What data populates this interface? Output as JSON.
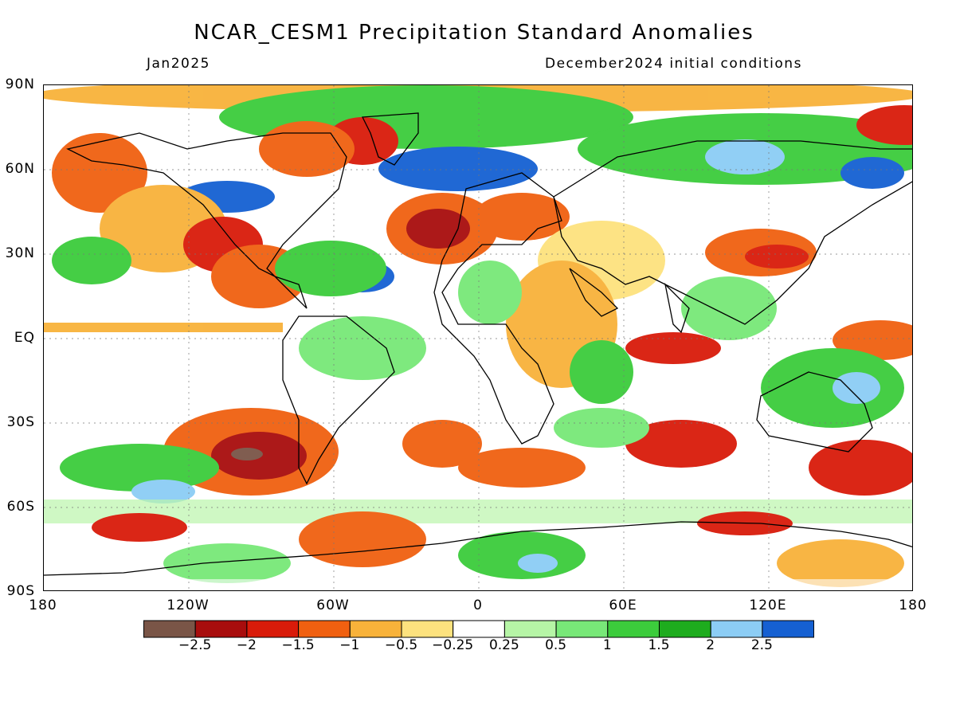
{
  "title": "NCAR_CESM1 Precipitation Standard Anomalies",
  "valid_month": "Jan2025",
  "initial_conditions": "December2024 initial conditions",
  "lat_labels": [
    "90N",
    "60N",
    "30N",
    "EQ",
    "30S",
    "60S",
    "90S"
  ],
  "lon_labels": [
    "180",
    "120W",
    "60W",
    "0",
    "60E",
    "120E",
    "180"
  ],
  "colorbar": {
    "colors": [
      "#7a5547",
      "#a80d0d",
      "#d91b0a",
      "#f06010",
      "#f8b23a",
      "#fde27e",
      "#ffffff",
      "#b6f5a6",
      "#78e878",
      "#3ccc3c",
      "#1eac1e",
      "#8ccdf5",
      "#1560d2"
    ],
    "labels": [
      "−2.5",
      "−2",
      "−1.5",
      "−1",
      "−0.5",
      "−0.25",
      "0.25",
      "0.5",
      "1",
      "1.5",
      "2",
      "2.5"
    ]
  }
}
